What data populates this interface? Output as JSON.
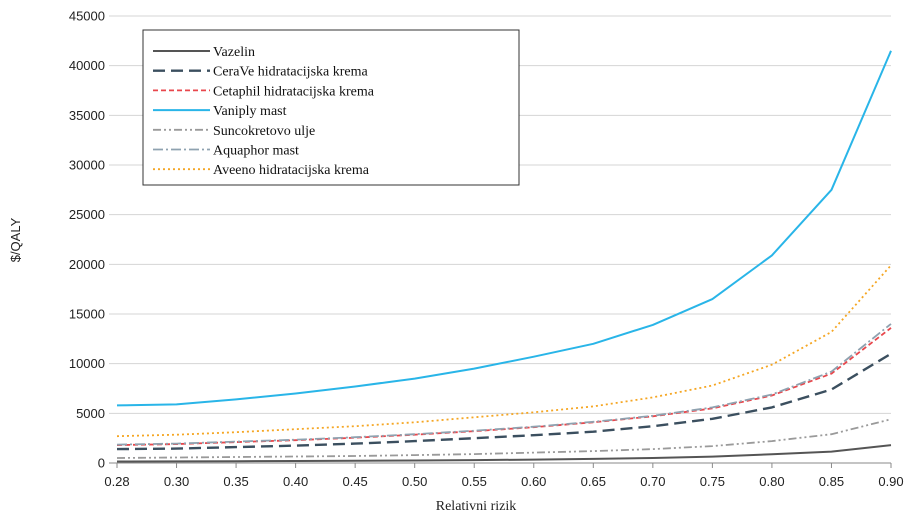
{
  "chart_data": {
    "type": "line",
    "xlabel": "Relativni rizik",
    "ylabel": "$/QALY",
    "x": [
      0.28,
      0.3,
      0.35,
      0.4,
      0.45,
      0.5,
      0.55,
      0.6,
      0.65,
      0.7,
      0.75,
      0.8,
      0.85,
      0.9
    ],
    "x_tick_labels": [
      "0.28",
      "0.30",
      "0.35",
      "0.40",
      "0.45",
      "0.50",
      "0.55",
      "0.60",
      "0.65",
      "0.70",
      "0.75",
      "0.80",
      "0.85",
      "0.90"
    ],
    "ylim": [
      0,
      45000
    ],
    "y_ticks": [
      0,
      5000,
      10000,
      15000,
      20000,
      25000,
      30000,
      35000,
      40000,
      45000
    ],
    "y_tick_labels": [
      "0",
      "5000",
      "10000",
      "15000",
      "20000",
      "25000",
      "30000",
      "35000",
      "40000",
      "45000"
    ],
    "grid": "horizontal",
    "legend_position": "top-left",
    "series": [
      {
        "name": "Vazelin",
        "color": "#555555",
        "dash": "solid",
        "values": [
          150,
          160,
          180,
          200,
          220,
          250,
          290,
          340,
          410,
          500,
          640,
          880,
          1150,
          1800
        ]
      },
      {
        "name": "CeraVe hidratacijska krema",
        "color": "#3b4f5f",
        "dash": "longdash",
        "values": [
          1400,
          1450,
          1600,
          1750,
          1950,
          2200,
          2500,
          2800,
          3150,
          3700,
          4450,
          5600,
          7400,
          11000
        ]
      },
      {
        "name": "Cetaphil hidratacijska krema",
        "color": "#e8474c",
        "dash": "dash",
        "values": [
          1800,
          1900,
          2100,
          2300,
          2550,
          2850,
          3200,
          3600,
          4100,
          4700,
          5500,
          6800,
          9000,
          13600
        ]
      },
      {
        "name": "Vaniply mast",
        "color": "#29b5e8",
        "dash": "solid",
        "values": [
          5800,
          5900,
          6400,
          7000,
          7700,
          8500,
          9500,
          10700,
          12000,
          13900,
          16500,
          20900,
          27500,
          41500
        ]
      },
      {
        "name": "Suncokretovo ulje",
        "color": "#9a9a9a",
        "dash": "dashdotdot",
        "values": [
          500,
          550,
          600,
          650,
          700,
          800,
          900,
          1050,
          1200,
          1400,
          1700,
          2200,
          2900,
          4400
        ]
      },
      {
        "name": "Aquaphor mast",
        "color": "#8fa2b0",
        "dash": "dashdot",
        "values": [
          1850,
          1950,
          2150,
          2350,
          2600,
          2900,
          3250,
          3650,
          4150,
          4750,
          5600,
          6900,
          9200,
          14000
        ]
      },
      {
        "name": "Aveeno hidratacijska krema",
        "color": "#f5a623",
        "dash": "dot",
        "values": [
          2700,
          2850,
          3100,
          3400,
          3700,
          4100,
          4600,
          5100,
          5700,
          6600,
          7800,
          9900,
          13200,
          19900
        ]
      }
    ]
  }
}
